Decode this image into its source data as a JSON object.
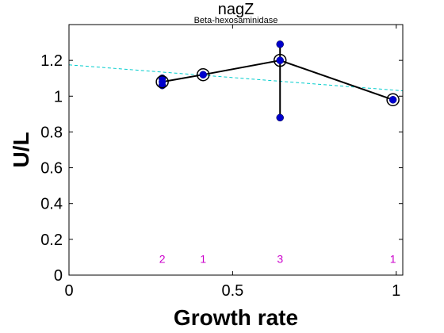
{
  "chart_data": {
    "type": "scatter",
    "title": "nagZ",
    "subtitle": "Beta-hexosaminidase",
    "xlabel": "Growth rate",
    "ylabel": "U/L",
    "xlim": [
      0,
      1.02
    ],
    "ylim": [
      0,
      1.4
    ],
    "xticks": [
      0,
      0.5,
      1
    ],
    "xtick_labels": [
      "0",
      "0.5",
      "1"
    ],
    "yticks": [
      0,
      0.2,
      0.4,
      0.6,
      0.8,
      1,
      1.2
    ],
    "ytick_labels": [
      "0",
      "0.2",
      "0.4",
      "0.6",
      "0.8",
      "1",
      "1.2"
    ],
    "grid": false,
    "series": [
      {
        "kind": "replicates",
        "color": "#0000cc",
        "points": [
          {
            "x": 0.285,
            "y": 1.1
          },
          {
            "x": 0.285,
            "y": 1.06
          },
          {
            "x": 0.41,
            "y": 1.12
          },
          {
            "x": 0.645,
            "y": 1.29
          },
          {
            "x": 0.645,
            "y": 1.2
          },
          {
            "x": 0.645,
            "y": 0.88
          },
          {
            "x": 0.99,
            "y": 0.98
          }
        ]
      },
      {
        "kind": "mean-line",
        "color": "#000000",
        "x": [
          0.285,
          0.41,
          0.645,
          0.99
        ],
        "y": [
          1.08,
          1.12,
          1.2,
          0.98
        ]
      },
      {
        "kind": "trend-line",
        "color": "#00cccc",
        "x": [
          0,
          1.02
        ],
        "y": [
          1.175,
          1.03
        ]
      }
    ],
    "counts": {
      "color": "#cc00cc",
      "y": 0.09,
      "items": [
        {
          "x": 0.285,
          "label": "2"
        },
        {
          "x": 0.41,
          "label": "1"
        },
        {
          "x": 0.645,
          "label": "3"
        },
        {
          "x": 0.99,
          "label": "1"
        }
      ]
    }
  }
}
